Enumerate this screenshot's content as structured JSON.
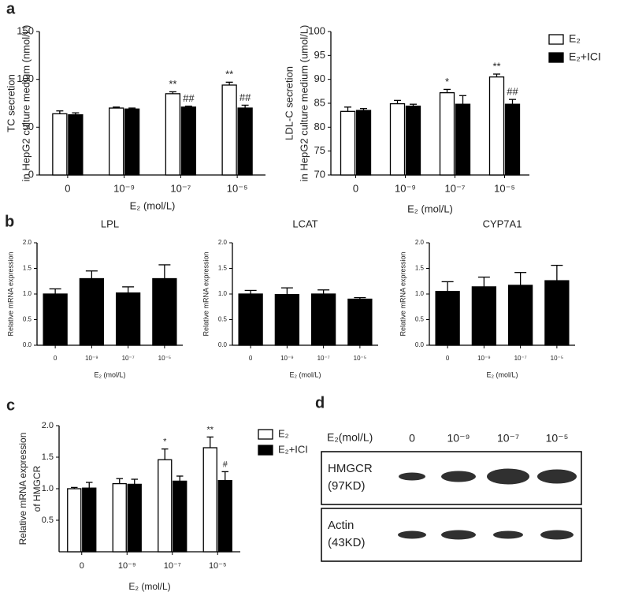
{
  "panel_letters": [
    "a",
    "b",
    "c",
    "d"
  ],
  "chart_data": [
    {
      "type": "bar",
      "y_label": [
        "TC secretion",
        "in HepG2 culture medium (nmol/L)"
      ],
      "x_label": "E₂ (mol/L)",
      "categories": [
        "0",
        "10⁻⁹",
        "10⁻⁷",
        "10⁻⁵"
      ],
      "ylim": [
        0,
        150
      ],
      "yticks": [
        0,
        50,
        100,
        150
      ],
      "series": [
        {
          "name": "E₂",
          "color": "#ffffff",
          "values": [
            64,
            70,
            85,
            94
          ],
          "errors": [
            3,
            1,
            2,
            3
          ],
          "annotations": [
            null,
            null,
            "**",
            "**"
          ]
        },
        {
          "name": "E₂+ICI",
          "color": "#000000",
          "values": [
            63,
            69,
            71,
            70
          ],
          "errors": [
            2,
            1,
            1,
            3
          ],
          "annotations": [
            null,
            null,
            "##",
            "##"
          ]
        }
      ]
    },
    {
      "type": "bar",
      "y_label": [
        "LDL-C secretion",
        "in HepG2 culture medium (umol/L)"
      ],
      "x_label": "E₂ (mol/L)",
      "categories": [
        "0",
        "10⁻⁹",
        "10⁻⁷",
        "10⁻⁵"
      ],
      "ylim": [
        70,
        100
      ],
      "yticks": [
        70,
        75,
        80,
        85,
        90,
        95,
        100
      ],
      "legend": "right",
      "series": [
        {
          "name": "E₂",
          "color": "#ffffff",
          "values": [
            83.3,
            84.9,
            87.2,
            90.5
          ],
          "errors": [
            0.9,
            0.7,
            0.7,
            0.6
          ],
          "annotations": [
            null,
            null,
            "*",
            "**"
          ]
        },
        {
          "name": "E₂+ICI",
          "color": "#000000",
          "values": [
            83.5,
            84.4,
            84.8,
            84.8
          ],
          "errors": [
            0.4,
            0.4,
            1.8,
            1.0
          ],
          "annotations": [
            null,
            null,
            null,
            "##"
          ]
        }
      ]
    },
    {
      "type": "bar",
      "title": "LPL",
      "y_label": [
        "Relative mRNA expression"
      ],
      "x_label": "E₂ (mol/L)",
      "categories": [
        "0",
        "10⁻⁹",
        "10⁻⁷",
        "10⁻⁵"
      ],
      "ylim": [
        0,
        2
      ],
      "yticks": [
        {
          "value": 0,
          "label": "0.0"
        },
        0.5,
        {
          "value": 1,
          "label": "1.0"
        },
        1.5,
        {
          "value": 2,
          "label": "2.0"
        }
      ],
      "series": [
        {
          "color": "#000000",
          "values": [
            1.0,
            1.3,
            1.02,
            1.3
          ],
          "errors": [
            0.1,
            0.15,
            0.12,
            0.27
          ]
        }
      ]
    },
    {
      "type": "bar",
      "title": "LCAT",
      "y_label": [
        "Relative mRNA expression"
      ],
      "x_label": "E₂ (mol/L)",
      "categories": [
        "0",
        "10⁻⁹",
        "10⁻⁷",
        "10⁻⁵"
      ],
      "ylim": [
        0,
        2
      ],
      "yticks": [
        {
          "value": 0,
          "label": "0.0"
        },
        0.5,
        {
          "value": 1,
          "label": "1.0"
        },
        1.5,
        {
          "value": 2,
          "label": "2.0"
        }
      ],
      "series": [
        {
          "color": "#000000",
          "values": [
            1.0,
            0.99,
            1.0,
            0.9
          ],
          "errors": [
            0.07,
            0.13,
            0.08,
            0.03
          ]
        }
      ]
    },
    {
      "type": "bar",
      "title": "CYP7A1",
      "y_label": [
        "Relative mRNA expression"
      ],
      "x_label": "E₂ (mol/L)",
      "categories": [
        "0",
        "10⁻⁹",
        "10⁻⁷",
        "10⁻⁵"
      ],
      "ylim": [
        0,
        2
      ],
      "yticks": [
        {
          "value": 0,
          "label": "0.0"
        },
        0.5,
        {
          "value": 1,
          "label": "1.0"
        },
        1.5,
        {
          "value": 2,
          "label": "2.0"
        }
      ],
      "series": [
        {
          "color": "#000000",
          "values": [
            1.05,
            1.14,
            1.17,
            1.26
          ],
          "errors": [
            0.19,
            0.19,
            0.25,
            0.3
          ]
        }
      ]
    },
    {
      "type": "bar",
      "y_label": [
        "Relative mRNA expression",
        "of HMGCR"
      ],
      "x_label": "E₂ (mol/L)",
      "categories": [
        "0",
        "10⁻⁹",
        "10⁻⁷",
        "10⁻⁵"
      ],
      "ylim": [
        0,
        2
      ],
      "yticks": [
        0.5,
        {
          "value": 1,
          "label": "1.0"
        },
        1.5,
        {
          "value": 2,
          "label": "2.0"
        }
      ],
      "legend": "right",
      "series": [
        {
          "name": "E₂",
          "color": "#ffffff",
          "values": [
            1.0,
            1.08,
            1.46,
            1.65
          ],
          "errors": [
            0.02,
            0.08,
            0.17,
            0.17
          ],
          "annotations": [
            null,
            null,
            "*",
            "**"
          ]
        },
        {
          "name": "E₂+ICI",
          "color": "#000000",
          "values": [
            1.01,
            1.07,
            1.12,
            1.13
          ],
          "errors": [
            0.09,
            0.08,
            0.08,
            0.14
          ],
          "annotations": [
            null,
            null,
            null,
            "#"
          ]
        }
      ]
    }
  ],
  "blot": {
    "header": "E₂(mol/L)",
    "lanes": [
      "0",
      "10⁻⁹",
      "10⁻⁷",
      "10⁻⁵"
    ],
    "rows": [
      {
        "label": [
          "HMGCR",
          "(97KD)"
        ]
      },
      {
        "label": [
          "Actin",
          "(43KD)"
        ]
      }
    ]
  }
}
